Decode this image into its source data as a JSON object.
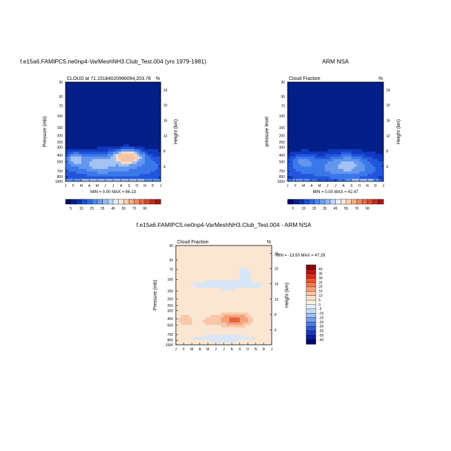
{
  "chart_data": [
    {
      "type": "heatmap",
      "title": "f.e15a6.FAMIPC5.ne0np4-VarMeshNH3.Club_Test.004 (yrs 1979-1981)",
      "subtitle_left": "CLOUD at 71.15184020996094,203.78",
      "subtitle_right": "%",
      "ylabel": "Pressure (mb)",
      "ylabel_right": "Height (km)",
      "yticks": [
        "30",
        "50",
        "70",
        "100",
        "150",
        "200",
        "250",
        "300",
        "400",
        "500",
        "700",
        "850",
        "1000"
      ],
      "yticks_right": [
        "24",
        "20",
        "16",
        "12",
        "8",
        "4"
      ],
      "xticks": [
        "J",
        "F",
        "M",
        "A",
        "M",
        "J",
        "J",
        "A",
        "S",
        "O",
        "N",
        "D",
        "J"
      ],
      "stats": "MIN =   0.00 MAX =  66.13",
      "colorbar_labels": [
        "5",
        "15",
        "25",
        "35",
        "45",
        "55",
        "70",
        "90"
      ],
      "fill_levels": [
        1,
        2,
        3,
        4,
        5,
        6,
        8
      ],
      "fill_colors": [
        "#041f88",
        "#1038c0",
        "#2255dd",
        "#3a78ea",
        "#6296ef",
        "#a4c2f4",
        "#f9dcc4",
        "#f6c4a5"
      ]
    },
    {
      "type": "heatmap",
      "title": "ARM NSA",
      "subtitle_left": "Cloud Fraction",
      "subtitle_right": "%",
      "ylabel": "pressure level",
      "ylabel_right": "Height (km)",
      "yticks": [
        "30",
        "50",
        "70",
        "100",
        "150",
        "200",
        "250",
        "300",
        "400",
        "500",
        "700",
        "850",
        "1000"
      ],
      "yticks_right": [
        "24",
        "20",
        "16",
        "12",
        "8",
        "4"
      ],
      "xticks": [
        "J",
        "F",
        "M",
        "A",
        "M",
        "J",
        "J",
        "A",
        "S",
        "O",
        "N",
        "D",
        "J"
      ],
      "stats": "MIN =   0.00 MAX =  42.47",
      "colorbar_labels": [
        "5",
        "15",
        "25",
        "35",
        "45",
        "55",
        "70",
        "90"
      ],
      "fill_levels": [
        1,
        2,
        3,
        4,
        5
      ],
      "fill_colors": [
        "#041f88",
        "#1038c0",
        "#2255dd",
        "#3a78ea",
        "#6296ef",
        "#a4c2f4"
      ]
    },
    {
      "type": "heatmap",
      "title": "f.e15a6.FAMIPC5.ne0np4-VarMeshNH3.Club_Test.004 - ARM NSA",
      "subtitle_left": "Cloud Fraction",
      "subtitle_right": "%",
      "ylabel": "Pressure (mb)",
      "ylabel_right": "Height (km)",
      "yticks": [
        "30",
        "50",
        "70",
        "100",
        "150",
        "200",
        "250",
        "300",
        "400",
        "500",
        "700",
        "850",
        "1000"
      ],
      "yticks_right": [
        "24",
        "20",
        "16",
        "12",
        "8",
        "4"
      ],
      "xticks": [
        "J",
        "F",
        "M",
        "A",
        "M",
        "J",
        "J",
        "A",
        "S",
        "O",
        "N",
        "D",
        "J"
      ],
      "stats": "MIN = -13.50 MAX =  47.29",
      "colorbar_labels": [
        "40",
        "35",
        "30",
        "25",
        "20",
        "15",
        "10",
        "5",
        "0",
        "-5",
        "-10",
        "-15",
        "-20",
        "-25",
        "-30",
        "-35",
        "-40"
      ],
      "fill_colors": [
        "#fbe6d2",
        "#d7e6f8",
        "#f7c7a8",
        "#f4a17a",
        "#e8623f"
      ]
    }
  ],
  "colorbar_seq": [
    "#03056e",
    "#041f88",
    "#0a33b0",
    "#1a4fd2",
    "#2e6ae6",
    "#4a86ec",
    "#6c9fef",
    "#92b9f3",
    "#bcd4f7",
    "#e6eefa",
    "#fde7d6",
    "#fbcdb0",
    "#f6ab85",
    "#f08b61",
    "#e56a44",
    "#d8482d",
    "#c42c1e",
    "#a61612"
  ],
  "colorbar_div": [
    "#8b0000",
    "#b81414",
    "#d92a1e",
    "#f0522f",
    "#f67a4f",
    "#f9a27a",
    "#fbc6a7",
    "#fde2cf",
    "#fdf1e4",
    "#e4eefb",
    "#c5daf6",
    "#9fc0f1",
    "#779fe9",
    "#4f7ee2",
    "#2f5bd5",
    "#1838b8",
    "#0c1f96",
    "#03056e"
  ]
}
